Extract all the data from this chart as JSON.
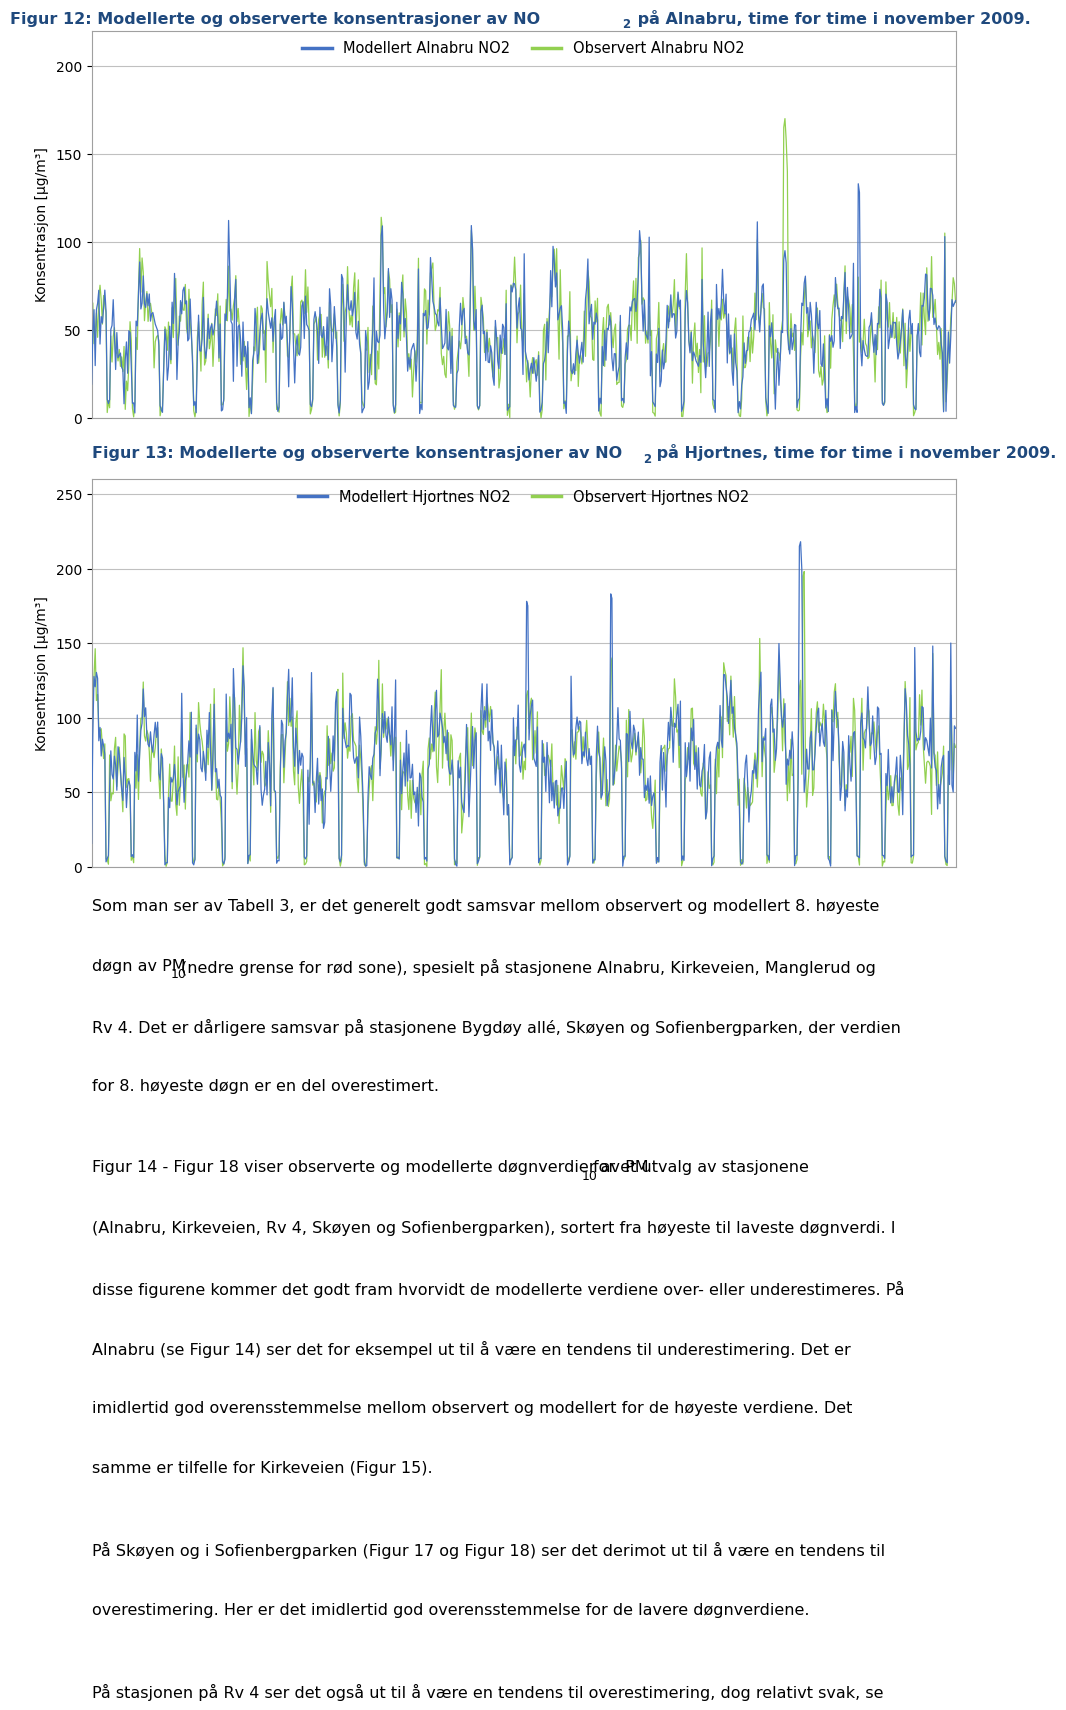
{
  "fig_title1": "Figur 12: Modellerte og observerte konsentrasjoner av NO",
  "fig_title1_sub": "2",
  "fig_title1_rest": " på Alnabru, time for time i november 2009.",
  "fig_title2": "Figur 13: Modellerte og observerte konsentrasjoner av NO",
  "fig_title2_sub": "2",
  "fig_title2_rest": " på Hjortnes, time for time i november 2009.",
  "legend1_mod": "Modellert Alnabru NO2",
  "legend1_obs": "Observert Alnabru NO2",
  "legend2_mod": "Modellert Hjortnes NO2",
  "legend2_obs": "Observert Hjortnes NO2",
  "ylabel": "Konsentrasjon [µg/m³]",
  "chart1_ylim": [
    0,
    220
  ],
  "chart1_yticks": [
    0,
    50,
    100,
    150,
    200
  ],
  "chart2_ylim": [
    0,
    260
  ],
  "chart2_yticks": [
    0,
    50,
    100,
    150,
    200,
    250
  ],
  "blue_color": "#4472C4",
  "green_color": "#92D050",
  "title_color": "#1F497D",
  "grid_color": "#C0C0C0",
  "spine_color": "#A0A0A0"
}
